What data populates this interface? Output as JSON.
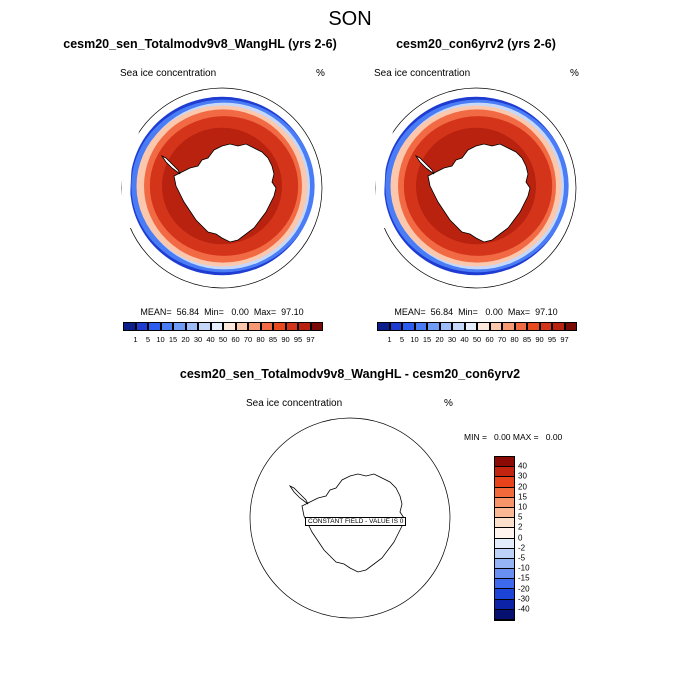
{
  "figure": {
    "title": "SON"
  },
  "chart_data": [
    {
      "type": "heatmap",
      "projection": "south-polar-stereographic",
      "title": "cesm20_sen_Totalmodv9v8_WangHL (yrs 2-6)",
      "left_label": "Sea ice concentration",
      "right_label": "%",
      "stats_text": "MEAN=  56.84  Min=   0.00  Max=  97.10",
      "mean": 56.84,
      "min": 0.0,
      "max": 97.1,
      "colorbar": {
        "orientation": "horizontal",
        "levels": [
          "1",
          "5",
          "10",
          "15",
          "20",
          "30",
          "40",
          "50",
          "60",
          "70",
          "80",
          "85",
          "90",
          "95",
          "97"
        ],
        "colors": [
          "#0a1e8c",
          "#1e3cd2",
          "#2b5ef0",
          "#4a7df5",
          "#6f9cf7",
          "#9dbcf8",
          "#c6d8fa",
          "#e6eefc",
          "#fde8dc",
          "#fbc8ae",
          "#f79a74",
          "#f26a44",
          "#e84a1e",
          "#d4341a",
          "#b8220f",
          "#7a0a05"
        ]
      }
    },
    {
      "type": "heatmap",
      "projection": "south-polar-stereographic",
      "title": "cesm20_con6yrv2 (yrs 2-6)",
      "left_label": "Sea ice concentration",
      "right_label": "%",
      "stats_text": "MEAN=  56.84  Min=   0.00  Max=  97.10",
      "mean": 56.84,
      "min": 0.0,
      "max": 97.1,
      "colorbar": {
        "orientation": "horizontal",
        "levels": [
          "1",
          "5",
          "10",
          "15",
          "20",
          "30",
          "40",
          "50",
          "60",
          "70",
          "80",
          "85",
          "90",
          "95",
          "97"
        ],
        "colors": [
          "#0a1e8c",
          "#1e3cd2",
          "#2b5ef0",
          "#4a7df5",
          "#6f9cf7",
          "#9dbcf8",
          "#c6d8fa",
          "#e6eefc",
          "#fde8dc",
          "#fbc8ae",
          "#f79a74",
          "#f26a44",
          "#e84a1e",
          "#d4341a",
          "#b8220f",
          "#7a0a05"
        ]
      }
    },
    {
      "type": "heatmap",
      "projection": "south-polar-stereographic",
      "title": "cesm20_sen_Totalmodv9v8_WangHL - cesm20_con6yrv2",
      "left_label": "Sea ice concentration",
      "right_label": "%",
      "stats_text": "MIN =   0.00 MAX =   0.00",
      "min": 0.0,
      "max": 0.0,
      "annotation": "CONSTANT FIELD - VALUE IS 0",
      "colorbar": {
        "orientation": "vertical",
        "levels": [
          "40",
          "30",
          "20",
          "15",
          "10",
          "5",
          "2",
          "0",
          "-2",
          "-5",
          "-10",
          "-15",
          "-20",
          "-30",
          "-40"
        ],
        "colors": [
          "#8b0a05",
          "#c22410",
          "#e8421a",
          "#f26a3c",
          "#f7946a",
          "#fbb894",
          "#fde0cc",
          "#fff5ee",
          "#e2ecfb",
          "#bdd2f8",
          "#94b4f5",
          "#6a8ff2",
          "#3d6aec",
          "#1d44d8",
          "#0c23a8",
          "#06106e"
        ]
      }
    }
  ]
}
